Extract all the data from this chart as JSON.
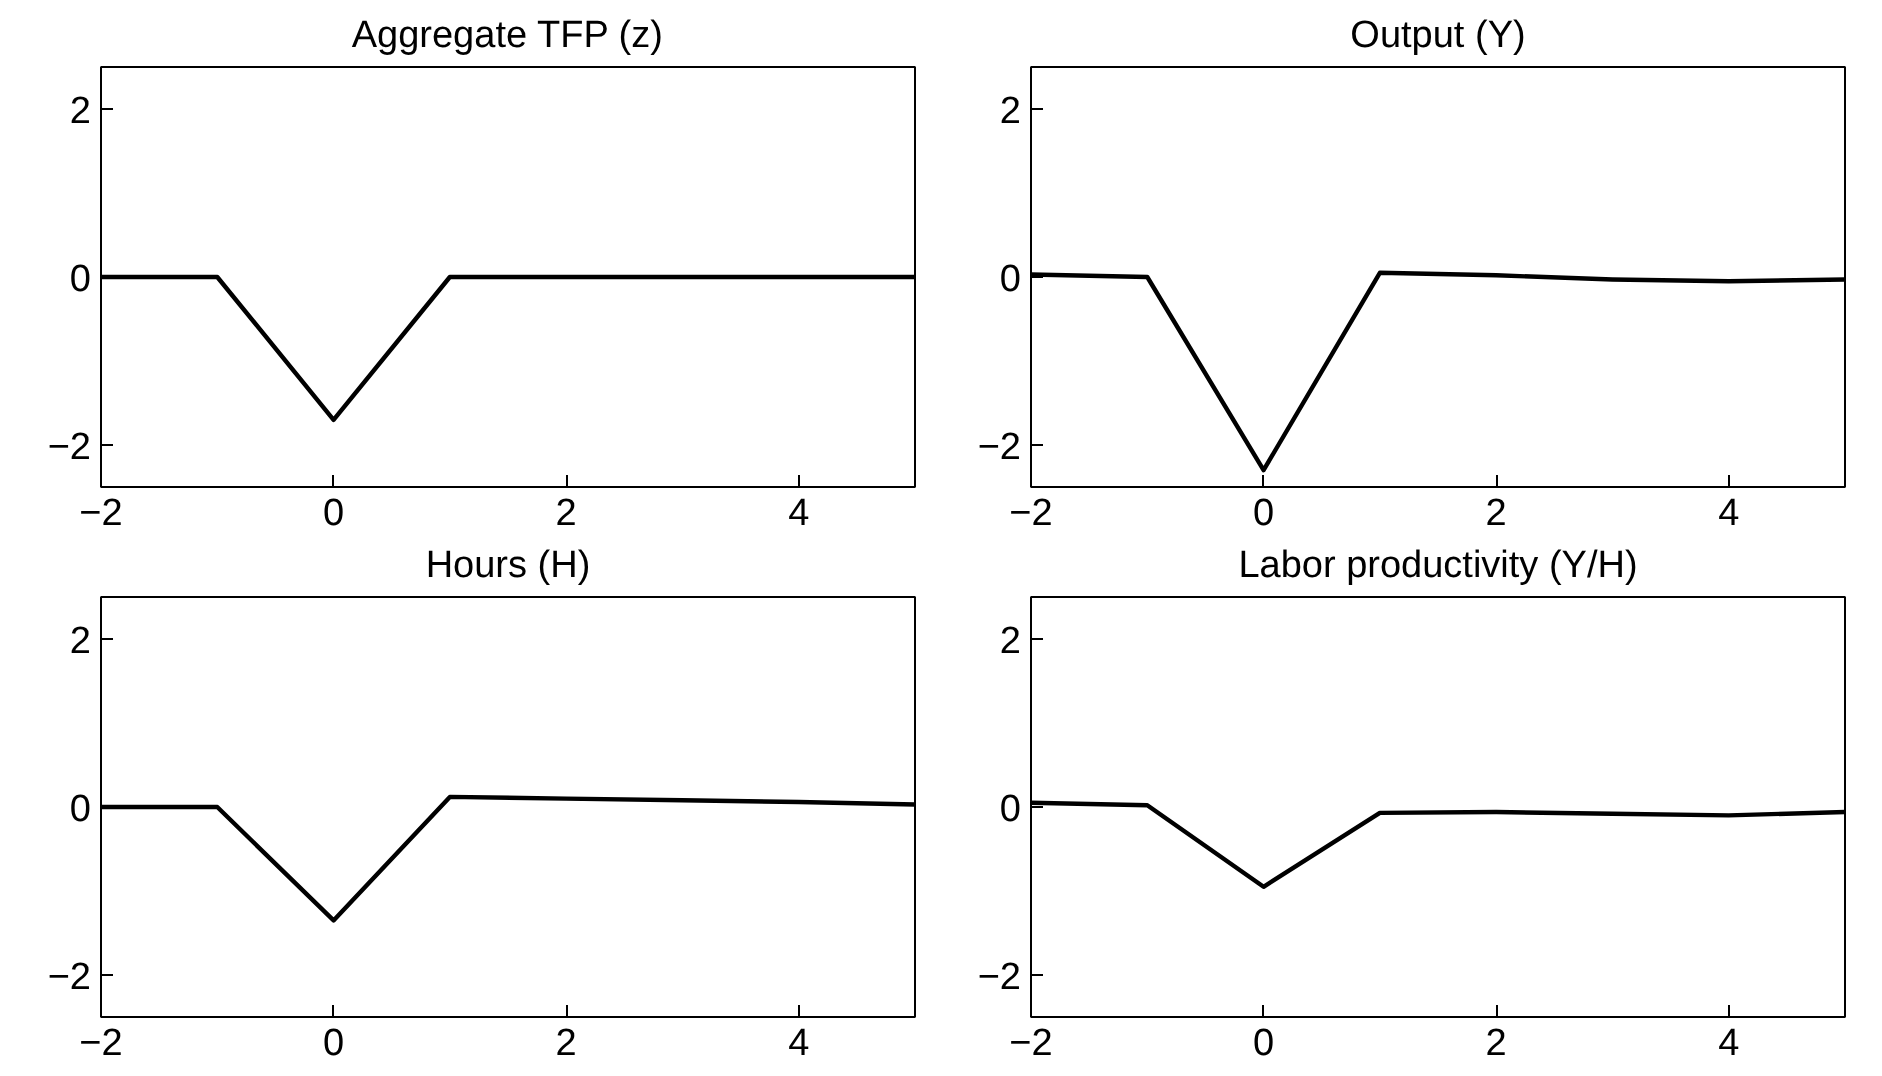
{
  "chart_data": [
    {
      "type": "line",
      "title": "Aggregate TFP (z)",
      "x": [
        -2,
        -1,
        0,
        1,
        2,
        3,
        4,
        5
      ],
      "series": [
        {
          "color": "#000000",
          "values": [
            0,
            0,
            -1.7,
            0,
            0,
            0,
            0,
            0
          ]
        }
      ],
      "xlim": [
        -2,
        5
      ],
      "ylim": [
        -2.5,
        2.5
      ],
      "xticks": [
        -2,
        0,
        2,
        4
      ],
      "yticks": [
        -2,
        0,
        2
      ]
    },
    {
      "type": "line",
      "title": "Output (Y)",
      "x": [
        -2,
        -1,
        0,
        1,
        2,
        3,
        4,
        5
      ],
      "series": [
        {
          "color": "#000000",
          "values": [
            0.03,
            0,
            -2.3,
            0.05,
            0.02,
            -0.03,
            -0.05,
            -0.03
          ]
        }
      ],
      "xlim": [
        -2,
        5
      ],
      "ylim": [
        -2.5,
        2.5
      ],
      "xticks": [
        -2,
        0,
        2,
        4
      ],
      "yticks": [
        -2,
        0,
        2
      ]
    },
    {
      "type": "line",
      "title": "Hours (H)",
      "x": [
        -2,
        -1,
        0,
        1,
        2,
        3,
        4,
        5
      ],
      "series": [
        {
          "color": "#000000",
          "values": [
            0,
            0,
            -1.35,
            0.12,
            0.1,
            0.08,
            0.06,
            0.03
          ]
        }
      ],
      "xlim": [
        -2,
        5
      ],
      "ylim": [
        -2.5,
        2.5
      ],
      "xticks": [
        -2,
        0,
        2,
        4
      ],
      "yticks": [
        -2,
        0,
        2
      ]
    },
    {
      "type": "line",
      "title": "Labor productivity (Y/H)",
      "x": [
        -2,
        -1,
        0,
        1,
        2,
        3,
        4,
        5
      ],
      "series": [
        {
          "color": "#000000",
          "values": [
            0.05,
            0.02,
            -0.95,
            -0.07,
            -0.06,
            -0.08,
            -0.1,
            -0.06
          ]
        }
      ],
      "xlim": [
        -2,
        5
      ],
      "ylim": [
        -2.5,
        2.5
      ],
      "xticks": [
        -2,
        0,
        2,
        4
      ],
      "yticks": [
        -2,
        0,
        2
      ]
    }
  ]
}
